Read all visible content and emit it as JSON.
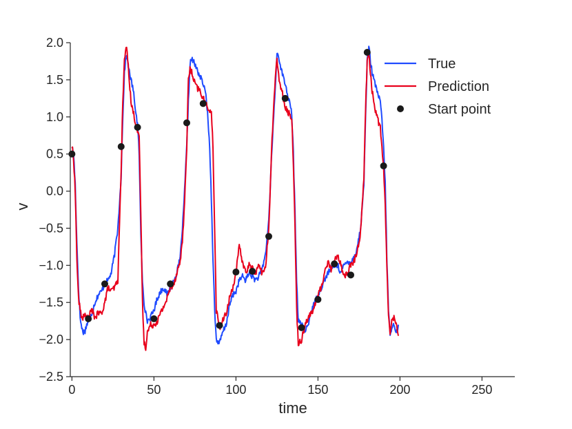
{
  "chart_data": {
    "type": "line",
    "xlabel": "time",
    "ylabel": "v",
    "xlim": [
      -1,
      270
    ],
    "ylim": [
      -2.5,
      2.0
    ],
    "xticks": [
      0,
      50,
      100,
      150,
      200,
      250
    ],
    "yticks": [
      2.0,
      1.5,
      1.0,
      0.5,
      0.0,
      -0.5,
      -1.0,
      -1.5,
      -2.0,
      -2.5
    ],
    "xtick_labels": [
      "0",
      "50",
      "100",
      "150",
      "200",
      "250"
    ],
    "ytick_labels": [
      "2.0",
      "1.5",
      "1.0",
      "0.5",
      "0.0",
      "−0.5",
      "−1.0",
      "−1.5",
      "−2.0",
      "−2.5"
    ],
    "grid": false,
    "legend_position": "top-right",
    "legend": [
      "True",
      "Prediction",
      "Start point"
    ],
    "series": [
      {
        "name": "True",
        "color": "#1f4bff",
        "x": [
          0,
          1,
          2,
          3,
          4,
          5,
          6,
          7,
          8,
          9,
          10,
          12,
          14,
          16,
          18,
          20,
          22,
          24,
          26,
          28,
          30,
          31,
          32,
          33,
          34,
          35,
          36,
          37,
          38,
          39,
          40,
          41,
          42,
          43,
          44,
          45,
          46,
          48,
          50,
          52,
          54,
          56,
          58,
          60,
          62,
          64,
          66,
          68,
          70,
          71,
          72,
          73,
          74,
          76,
          78,
          80,
          82,
          84,
          85,
          86,
          87,
          88,
          90,
          92,
          94,
          96,
          98,
          100,
          102,
          104,
          106,
          108,
          110,
          112,
          114,
          116,
          118,
          120,
          122,
          124,
          125,
          126,
          128,
          130,
          132,
          134,
          135,
          136,
          137,
          138,
          140,
          142,
          144,
          146,
          148,
          150,
          152,
          154,
          156,
          158,
          160,
          162,
          164,
          166,
          168,
          170,
          172,
          174,
          176,
          178,
          179,
          180,
          181,
          182,
          183,
          184,
          186,
          188,
          189,
          190,
          191,
          192,
          193,
          194,
          195,
          196,
          198,
          199
        ],
        "y": [
          0.6,
          0.5,
          0.1,
          -0.7,
          -1.3,
          -1.7,
          -1.85,
          -1.9,
          -1.88,
          -1.8,
          -1.75,
          -1.65,
          -1.5,
          -1.4,
          -1.35,
          -1.25,
          -1.2,
          -1.1,
          -0.85,
          -0.5,
          0.2,
          1.0,
          1.6,
          1.82,
          1.75,
          1.6,
          1.5,
          1.4,
          1.25,
          1.05,
          0.9,
          0.5,
          -0.6,
          -1.2,
          -1.5,
          -1.65,
          -1.75,
          -1.7,
          -1.6,
          -1.45,
          -1.35,
          -1.3,
          -1.4,
          -1.3,
          -1.2,
          -1.1,
          -0.9,
          -0.3,
          0.6,
          1.2,
          1.72,
          1.78,
          1.75,
          1.65,
          1.55,
          1.45,
          1.25,
          0.6,
          -0.1,
          -0.9,
          -1.6,
          -2.0,
          -2.05,
          -1.9,
          -1.8,
          -1.55,
          -1.4,
          -1.35,
          -1.2,
          -1.15,
          -1.2,
          -1.1,
          -1.15,
          -1.2,
          -1.15,
          -1.05,
          -0.85,
          -0.4,
          0.6,
          1.4,
          1.85,
          1.82,
          1.6,
          1.45,
          1.25,
          1.05,
          0.5,
          -0.3,
          -1.2,
          -1.75,
          -1.8,
          -1.9,
          -1.8,
          -1.6,
          -1.5,
          -1.4,
          -1.3,
          -1.2,
          -1.1,
          -1.05,
          -1.0,
          -1.0,
          -1.1,
          -1.0,
          -0.95,
          -0.95,
          -0.9,
          -0.75,
          -0.5,
          0.1,
          1.0,
          1.75,
          1.95,
          1.75,
          1.6,
          1.5,
          1.35,
          1.2,
          0.95,
          0.6,
          0.1,
          -0.9,
          -1.6,
          -1.95,
          -1.85,
          -1.8,
          -1.9,
          -1.8
        ],
        "noise": 0.04
      },
      {
        "name": "Prediction",
        "color": "#e8001c",
        "x": [
          0,
          1,
          2,
          3,
          4,
          5,
          6,
          7,
          8,
          9,
          10,
          12,
          14,
          16,
          18,
          20,
          22,
          24,
          26,
          28,
          30,
          31,
          32,
          33,
          34,
          35,
          36,
          37,
          38,
          39,
          40,
          41,
          42,
          43,
          44,
          45,
          46,
          48,
          50,
          52,
          54,
          56,
          58,
          60,
          62,
          64,
          66,
          68,
          70,
          71,
          72,
          73,
          74,
          76,
          78,
          80,
          82,
          84,
          85,
          86,
          87,
          88,
          90,
          92,
          94,
          96,
          98,
          100,
          102,
          104,
          106,
          108,
          110,
          112,
          114,
          116,
          118,
          120,
          122,
          124,
          125,
          126,
          128,
          130,
          132,
          134,
          135,
          136,
          137,
          138,
          140,
          142,
          144,
          146,
          148,
          150,
          152,
          154,
          156,
          158,
          160,
          162,
          164,
          166,
          168,
          170,
          172,
          174,
          176,
          178,
          179,
          180,
          181,
          182,
          183,
          184,
          186,
          188,
          189,
          190,
          191,
          192,
          193,
          194,
          195,
          196,
          198,
          199
        ],
        "y": [
          0.6,
          0.45,
          0.0,
          -0.9,
          -1.45,
          -1.6,
          -1.7,
          -1.7,
          -1.68,
          -1.7,
          -1.72,
          -1.6,
          -1.7,
          -1.65,
          -1.65,
          -1.5,
          -1.3,
          -1.35,
          -1.3,
          -1.2,
          0.3,
          1.2,
          1.75,
          1.95,
          1.8,
          1.5,
          1.2,
          1.1,
          1.0,
          0.9,
          0.8,
          0.7,
          -0.3,
          -1.5,
          -2.05,
          -2.1,
          -1.9,
          -1.8,
          -1.8,
          -1.75,
          -1.65,
          -1.55,
          -1.45,
          -1.3,
          -1.25,
          -1.1,
          -0.95,
          -0.5,
          0.6,
          1.5,
          1.65,
          1.6,
          1.5,
          1.4,
          1.35,
          1.25,
          1.15,
          1.1,
          1.05,
          0.6,
          -0.5,
          -1.6,
          -1.85,
          -1.75,
          -1.65,
          -1.45,
          -1.3,
          -1.1,
          -0.75,
          -0.95,
          -1.1,
          -1.0,
          -1.05,
          -1.1,
          -1.0,
          -1.1,
          -1.05,
          -0.5,
          0.7,
          1.55,
          1.75,
          1.55,
          1.35,
          1.15,
          1.05,
          1.0,
          0.4,
          -0.5,
          -1.6,
          -2.05,
          -2.0,
          -1.8,
          -1.7,
          -1.65,
          -1.55,
          -1.4,
          -1.3,
          -1.1,
          -0.95,
          -1.05,
          -0.95,
          -0.85,
          -1.0,
          -1.15,
          -1.1,
          -1.0,
          -0.95,
          -0.8,
          -0.55,
          0.2,
          1.1,
          1.75,
          1.85,
          1.6,
          1.35,
          1.2,
          1.0,
          0.85,
          0.6,
          0.3,
          -0.2,
          -1.0,
          -1.7,
          -1.95,
          -1.7,
          -1.7,
          -1.8,
          -1.95
        ],
        "noise": 0.045
      }
    ],
    "start_points": {
      "name": "Start point",
      "color": "#1a1a1a",
      "x": [
        0,
        10,
        20,
        30,
        40,
        50,
        60,
        70,
        80,
        90,
        100,
        110,
        120,
        130,
        140,
        150,
        160,
        170,
        180,
        190
      ],
      "y": [
        0.5,
        -1.72,
        -1.25,
        0.6,
        0.86,
        -1.72,
        -1.25,
        0.92,
        1.18,
        -1.81,
        -1.09,
        -1.08,
        -0.61,
        1.25,
        -1.84,
        -1.46,
        -0.98,
        -1.13,
        1.87,
        0.34
      ]
    }
  }
}
